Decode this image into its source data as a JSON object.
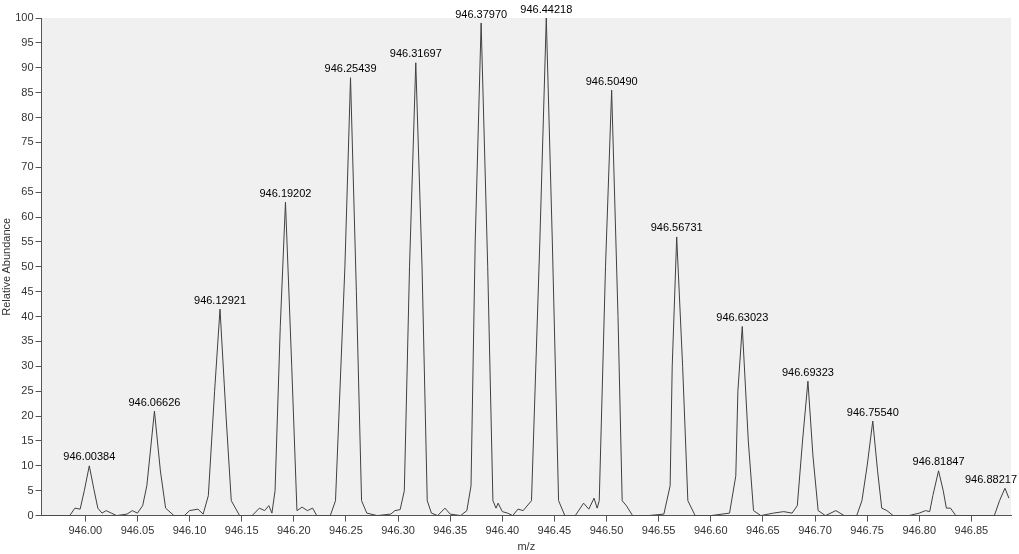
{
  "chart_data": {
    "type": "line",
    "xlabel": "m/z",
    "ylabel": "Relative Abundance",
    "legend": false,
    "grid": false,
    "marker": "none",
    "line_style": "solid",
    "xlim": [
      945.958,
      946.888
    ],
    "ylim": [
      0,
      100
    ],
    "xticks": [
      {
        "value": 946.0,
        "label": "946.00"
      },
      {
        "value": 946.05,
        "label": "946.05"
      },
      {
        "value": 946.1,
        "label": "946.10"
      },
      {
        "value": 946.15,
        "label": "946.15"
      },
      {
        "value": 946.2,
        "label": "946.20"
      },
      {
        "value": 946.25,
        "label": "946.25"
      },
      {
        "value": 946.3,
        "label": "946.30"
      },
      {
        "value": 946.35,
        "label": "946.35"
      },
      {
        "value": 946.4,
        "label": "946.40"
      },
      {
        "value": 946.45,
        "label": "946.45"
      },
      {
        "value": 946.5,
        "label": "946.50"
      },
      {
        "value": 946.55,
        "label": "946.55"
      },
      {
        "value": 946.6,
        "label": "946.60"
      },
      {
        "value": 946.65,
        "label": "946.65"
      },
      {
        "value": 946.7,
        "label": "946.70"
      },
      {
        "value": 946.75,
        "label": "946.75"
      },
      {
        "value": 946.8,
        "label": "946.80"
      },
      {
        "value": 946.85,
        "label": "946.85"
      }
    ],
    "yticks": [
      0,
      5,
      10,
      15,
      20,
      25,
      30,
      35,
      40,
      45,
      50,
      55,
      60,
      65,
      70,
      75,
      80,
      85,
      90,
      95,
      100
    ],
    "series": [
      {
        "color": "#404040",
        "x": [
          945.958,
          945.985,
          945.99,
          945.995,
          945.999,
          946.0038,
          946.008,
          946.012,
          946.016,
          946.02,
          946.025,
          946.03,
          946.04,
          946.045,
          946.05,
          946.055,
          946.059,
          946.0663,
          946.072,
          946.077,
          946.085,
          946.095,
          946.1,
          946.108,
          946.113,
          946.118,
          946.124,
          946.1292,
          946.135,
          946.14,
          946.148,
          946.16,
          946.167,
          946.172,
          946.176,
          946.179,
          946.182,
          946.187,
          946.192,
          946.198,
          946.203,
          946.208,
          946.213,
          946.218,
          946.222,
          946.235,
          946.24,
          946.249,
          946.2544,
          946.26,
          946.265,
          946.27,
          946.28,
          946.293,
          946.297,
          946.302,
          946.306,
          946.311,
          946.317,
          946.323,
          946.328,
          946.332,
          946.338,
          946.345,
          946.35,
          946.36,
          946.366,
          946.37,
          946.374,
          946.3797,
          946.386,
          946.391,
          946.394,
          946.396,
          946.4,
          946.405,
          946.41,
          946.415,
          946.42,
          946.428,
          946.436,
          946.4422,
          946.448,
          946.454,
          946.46,
          946.47,
          946.478,
          946.483,
          946.488,
          946.491,
          946.493,
          946.499,
          946.5049,
          946.511,
          946.515,
          946.519,
          946.525,
          946.54,
          946.555,
          946.561,
          946.563,
          946.5673,
          946.573,
          946.578,
          946.585,
          946.6,
          946.618,
          946.624,
          946.626,
          946.6302,
          946.636,
          946.641,
          946.648,
          946.66,
          946.67,
          946.678,
          946.683,
          946.688,
          946.6932,
          946.698,
          946.703,
          946.71,
          946.72,
          946.728,
          946.74,
          946.745,
          946.75,
          946.7554,
          946.76,
          946.764,
          946.769,
          946.775,
          946.79,
          946.8,
          946.806,
          946.81,
          946.813,
          946.8185,
          946.823,
          946.826,
          946.83,
          946.835,
          946.85,
          946.872,
          946.877,
          946.8822,
          946.886
        ],
        "values": [
          0,
          0,
          1.5,
          1.3,
          5,
          10,
          5.5,
          1.5,
          0.5,
          1,
          0.5,
          0,
          0.3,
          1,
          0.5,
          2,
          6,
          21,
          9,
          1.5,
          0,
          0,
          1,
          1.3,
          0.3,
          4,
          25,
          41.5,
          20,
          3,
          0,
          0,
          1.5,
          1,
          2,
          0.5,
          5,
          38,
          63,
          30,
          1,
          1.7,
          1,
          1.5,
          0,
          0,
          3,
          50,
          88,
          45,
          3,
          0.5,
          0,
          0.3,
          1,
          1.2,
          5,
          50,
          91,
          50,
          3,
          0.5,
          0,
          1.5,
          0.3,
          0,
          1,
          6,
          55,
          99,
          50,
          3,
          1.5,
          2.5,
          0.8,
          0.5,
          0,
          1.3,
          1,
          3,
          55,
          100,
          55,
          3,
          0,
          0,
          2.5,
          1.3,
          3.5,
          1.5,
          3,
          50,
          85.5,
          40,
          3,
          2,
          0,
          0,
          0.3,
          6,
          30,
          56,
          30,
          3,
          0,
          0,
          0.5,
          8,
          25,
          38,
          15,
          1,
          0,
          0.5,
          0.8,
          0.5,
          2,
          15,
          27,
          12,
          1,
          0,
          1,
          0,
          0,
          3,
          10,
          19,
          9,
          1.5,
          1,
          0,
          0,
          0.5,
          1,
          0.8,
          4,
          9,
          5,
          1.5,
          1.5,
          0,
          0,
          0,
          3,
          5.5,
          3.5
        ]
      }
    ],
    "annotations": [
      {
        "text": "946.00384",
        "x": 946.0038,
        "y": 10
      },
      {
        "text": "946.06626",
        "x": 946.0663,
        "y": 21
      },
      {
        "text": "946.12921",
        "x": 946.1292,
        "y": 41.5
      },
      {
        "text": "946.19202",
        "x": 946.192,
        "y": 63
      },
      {
        "text": "946.25439",
        "x": 946.2544,
        "y": 88
      },
      {
        "text": "946.31697",
        "x": 946.317,
        "y": 91
      },
      {
        "text": "946.37970",
        "x": 946.3797,
        "y": 99
      },
      {
        "text": "946.44218",
        "x": 946.4422,
        "y": 100
      },
      {
        "text": "946.50490",
        "x": 946.5049,
        "y": 85.5
      },
      {
        "text": "946.56731",
        "x": 946.5673,
        "y": 56
      },
      {
        "text": "946.63023",
        "x": 946.6302,
        "y": 38
      },
      {
        "text": "946.69323",
        "x": 946.6932,
        "y": 27
      },
      {
        "text": "946.75540",
        "x": 946.7554,
        "y": 19
      },
      {
        "text": "946.81847",
        "x": 946.8185,
        "y": 9
      },
      {
        "text": "946.88217",
        "x": 946.8822,
        "y": 5.5
      }
    ]
  }
}
